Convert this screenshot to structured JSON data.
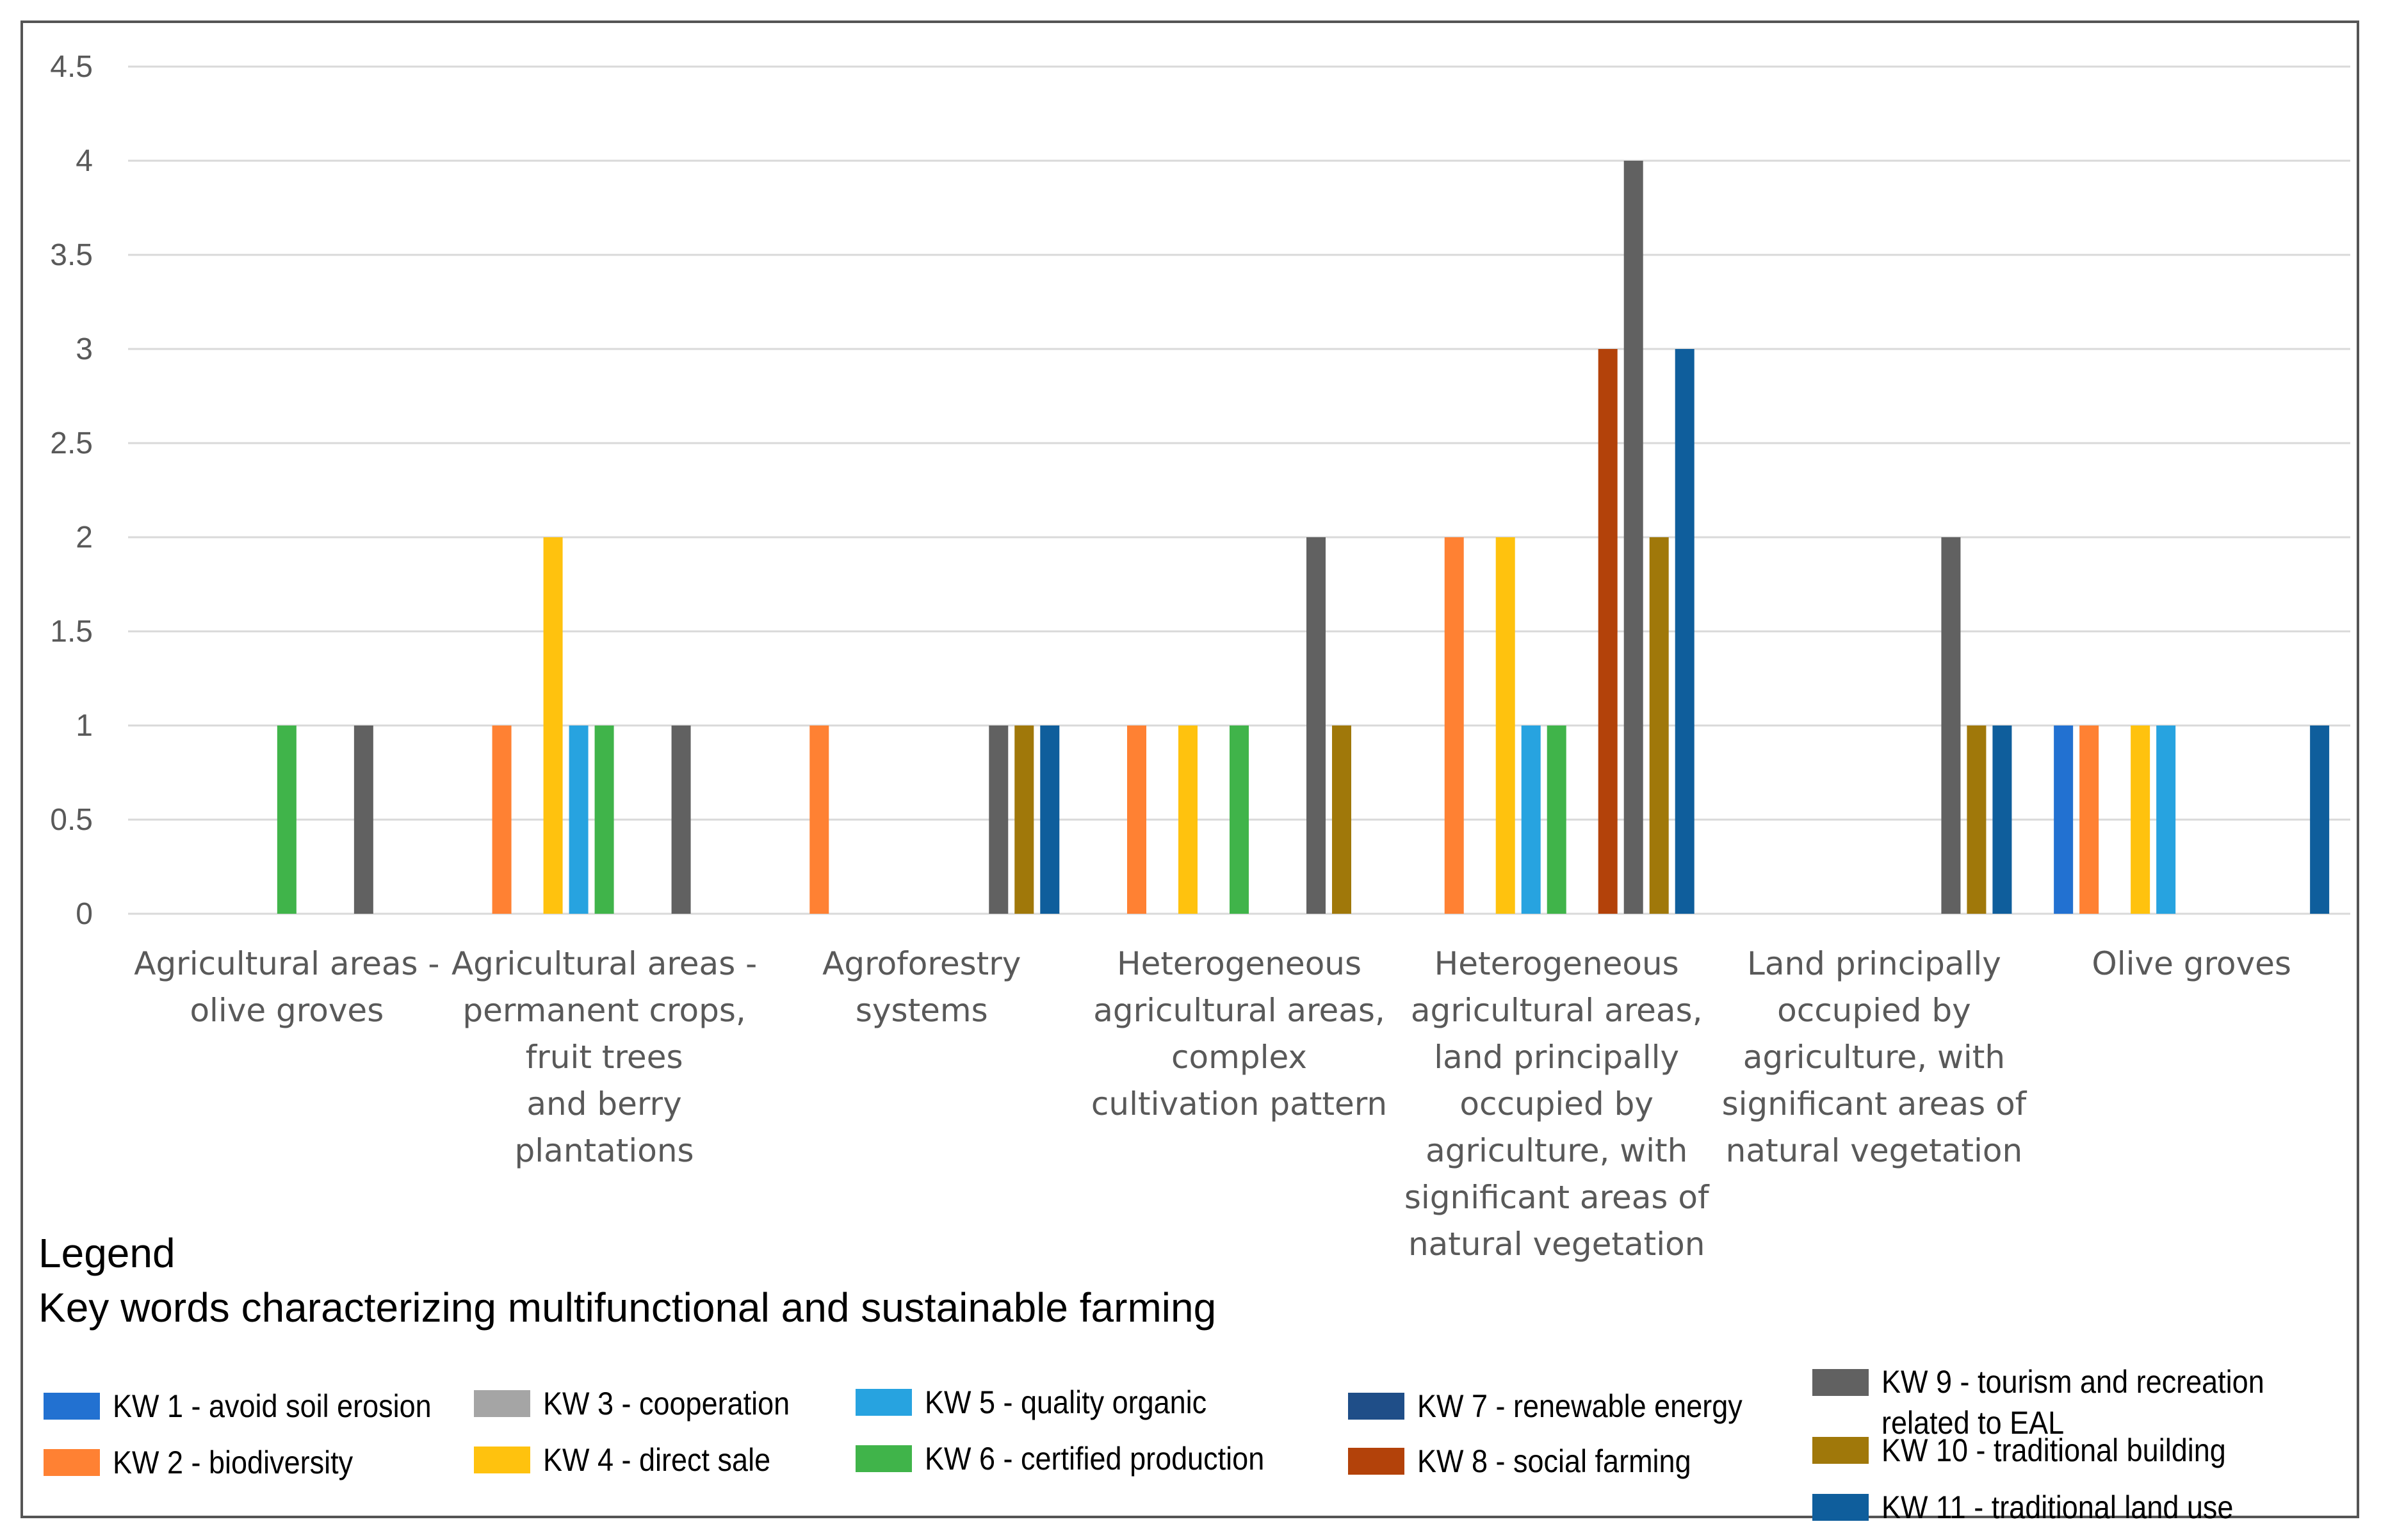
{
  "chart_data": {
    "type": "bar",
    "title": "",
    "xlabel": "",
    "ylabel": "",
    "ylim": [
      0,
      4.5
    ],
    "yticks": [
      "0",
      "0.5",
      "1",
      "1.5",
      "2",
      "2.5",
      "3",
      "3.5",
      "4",
      "4.5"
    ],
    "grid": true,
    "categories": [
      [
        "Agricultural areas -",
        "olive groves"
      ],
      [
        "Agricultural areas -",
        "permanent crops,",
        "fruit trees",
        "and berry",
        "plantations"
      ],
      [
        "Agroforestry",
        "systems"
      ],
      [
        "Heterogeneous",
        "agricultural areas,",
        "complex",
        "cultivation pattern"
      ],
      [
        "Heterogeneous",
        "agricultural areas,",
        "land principally",
        "occupied by",
        "agriculture, with",
        "significant areas of",
        "natural vegetation"
      ],
      [
        "Land principally",
        "occupied by",
        "agriculture, with",
        "significant areas of",
        "natural vegetation"
      ],
      [
        "Olive groves"
      ]
    ],
    "series": [
      {
        "name": "KW 1 - avoid soil erosion",
        "color": "#2271D1",
        "values": [
          0,
          0,
          0,
          0,
          0,
          0,
          1
        ]
      },
      {
        "name": "KW 2 - biodiversity",
        "color": "#FF8133",
        "values": [
          0,
          1,
          1,
          1,
          2,
          0,
          1
        ]
      },
      {
        "name": "KW 3 - cooperation",
        "color": "#A5A5A5",
        "values": [
          0,
          0,
          0,
          0,
          0,
          0,
          0
        ]
      },
      {
        "name": "KW 4 - direct sale",
        "color": "#FFC20E",
        "values": [
          0,
          2,
          0,
          1,
          2,
          0,
          1
        ]
      },
      {
        "name": "KW 5 - quality organic",
        "color": "#27A3E0",
        "values": [
          0,
          1,
          0,
          0,
          1,
          0,
          1
        ]
      },
      {
        "name": "KW 6 - certified production",
        "color": "#40B44A",
        "values": [
          1,
          1,
          0,
          1,
          1,
          0,
          0
        ]
      },
      {
        "name": "KW 7 - renewable energy",
        "color": "#1F4E88",
        "values": [
          0,
          0,
          0,
          0,
          0,
          0,
          0
        ]
      },
      {
        "name": "KW 8 - social farming",
        "color": "#B3420A",
        "values": [
          0,
          0,
          0,
          0,
          3,
          0,
          0
        ]
      },
      {
        "name": "KW 9 - tourism and recreation related to EAL",
        "color": "#616161",
        "values": [
          1,
          1,
          1,
          2,
          4,
          2,
          0
        ]
      },
      {
        "name": "KW 10 - traditional building",
        "color": "#A0780A",
        "values": [
          0,
          0,
          1,
          1,
          2,
          1,
          0
        ]
      },
      {
        "name": "KW 11 - traditional land use",
        "color": "#0F5E9C",
        "values": [
          0,
          0,
          1,
          0,
          3,
          1,
          1
        ]
      }
    ]
  },
  "legend": {
    "heading": "Legend",
    "subtitle": "Key words characterizing multifunctional and sustainable farming",
    "items": [
      {
        "lines": [
          "KW 1 - avoid soil erosion"
        ],
        "color": "#2271D1"
      },
      {
        "lines": [
          "KW 2 - biodiversity"
        ],
        "color": "#FF8133"
      },
      {
        "lines": [
          "KW 3 - cooperation"
        ],
        "color": "#A5A5A5"
      },
      {
        "lines": [
          "KW 4 - direct sale"
        ],
        "color": "#FFC20E"
      },
      {
        "lines": [
          "KW 5 - quality organic"
        ],
        "color": "#27A3E0"
      },
      {
        "lines": [
          "KW 6 - certified production"
        ],
        "color": "#40B44A"
      },
      {
        "lines": [
          "KW 7 - renewable energy"
        ],
        "color": "#1F4E88"
      },
      {
        "lines": [
          "KW 8 - social farming"
        ],
        "color": "#B3420A"
      },
      {
        "lines": [
          "KW 9 - tourism and recreation",
          "related to EAL"
        ],
        "color": "#616161"
      },
      {
        "lines": [
          "KW 10 - traditional building"
        ],
        "color": "#A0780A"
      },
      {
        "lines": [
          "KW 11 - traditional land use"
        ],
        "color": "#0F5E9C"
      }
    ]
  }
}
